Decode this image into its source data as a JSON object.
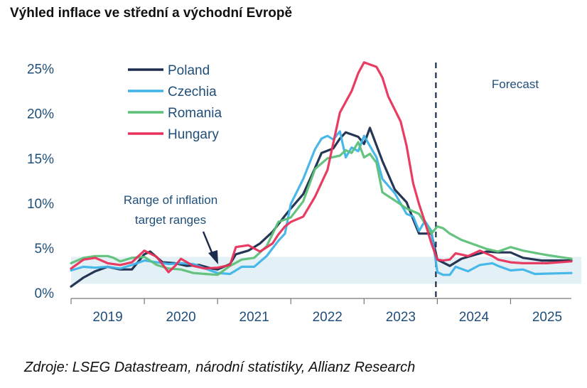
{
  "title": "Výhled inflace ve střední a východní Evropě",
  "source": "Zdroje: LSEG Datastream, národní statistiky, Allianz Research",
  "chart_data": {
    "type": "line",
    "y_ticks": [
      "0%",
      "5%",
      "10%",
      "15%",
      "20%",
      "25%"
    ],
    "ylim": [
      0,
      26
    ],
    "x_labels": [
      "2019",
      "2020",
      "2021",
      "2022",
      "2023",
      "2024",
      "2025"
    ],
    "xlim": [
      2019.0,
      2025.83
    ],
    "forecast_start": 2024.0,
    "forecast_label": "Forecast",
    "band": {
      "label": "Range of inflation target ranges",
      "range": [
        1.0,
        4.0
      ],
      "color": "#e3f1f6"
    },
    "series": [
      {
        "name": "Poland",
        "color": "#1a2b4c",
        "points": [
          [
            2019.0,
            0.7
          ],
          [
            2019.17,
            1.7
          ],
          [
            2019.33,
            2.4
          ],
          [
            2019.5,
            2.9
          ],
          [
            2019.67,
            2.6
          ],
          [
            2019.83,
            2.6
          ],
          [
            2020.0,
            4.3
          ],
          [
            2020.08,
            4.6
          ],
          [
            2020.25,
            3.4
          ],
          [
            2020.42,
            3.3
          ],
          [
            2020.58,
            3.0
          ],
          [
            2020.75,
            3.1
          ],
          [
            2020.92,
            2.7
          ],
          [
            2021.0,
            2.6
          ],
          [
            2021.17,
            3.2
          ],
          [
            2021.25,
            4.3
          ],
          [
            2021.42,
            4.7
          ],
          [
            2021.58,
            5.5
          ],
          [
            2021.75,
            6.8
          ],
          [
            2021.92,
            8.6
          ],
          [
            2022.0,
            9.4
          ],
          [
            2022.17,
            11.0
          ],
          [
            2022.33,
            13.9
          ],
          [
            2022.42,
            15.6
          ],
          [
            2022.58,
            16.1
          ],
          [
            2022.67,
            17.2
          ],
          [
            2022.75,
            17.9
          ],
          [
            2022.92,
            17.4
          ],
          [
            2023.0,
            16.6
          ],
          [
            2023.08,
            18.4
          ],
          [
            2023.25,
            14.7
          ],
          [
            2023.42,
            11.5
          ],
          [
            2023.58,
            10.1
          ],
          [
            2023.67,
            8.2
          ],
          [
            2023.75,
            6.6
          ],
          [
            2023.92,
            6.6
          ],
          [
            2024.0,
            3.7
          ],
          [
            2024.17,
            3.0
          ],
          [
            2024.33,
            3.8
          ],
          [
            2024.5,
            4.2
          ],
          [
            2024.67,
            4.6
          ],
          [
            2024.83,
            4.5
          ],
          [
            2025.0,
            4.5
          ],
          [
            2025.17,
            3.9
          ],
          [
            2025.42,
            3.6
          ],
          [
            2025.83,
            3.6
          ]
        ]
      },
      {
        "name": "Czechia",
        "color": "#3fb3e8",
        "points": [
          [
            2019.0,
            2.5
          ],
          [
            2019.17,
            2.9
          ],
          [
            2019.33,
            2.8
          ],
          [
            2019.5,
            2.9
          ],
          [
            2019.67,
            2.7
          ],
          [
            2019.83,
            3.1
          ],
          [
            2020.0,
            3.6
          ],
          [
            2020.17,
            3.4
          ],
          [
            2020.33,
            3.2
          ],
          [
            2020.5,
            3.3
          ],
          [
            2020.67,
            3.2
          ],
          [
            2020.83,
            2.7
          ],
          [
            2021.0,
            2.2
          ],
          [
            2021.17,
            2.1
          ],
          [
            2021.33,
            2.9
          ],
          [
            2021.5,
            2.9
          ],
          [
            2021.67,
            4.1
          ],
          [
            2021.83,
            5.8
          ],
          [
            2021.92,
            6.6
          ],
          [
            2022.0,
            9.9
          ],
          [
            2022.17,
            12.7
          ],
          [
            2022.33,
            16.0
          ],
          [
            2022.42,
            17.2
          ],
          [
            2022.5,
            17.5
          ],
          [
            2022.58,
            17.1
          ],
          [
            2022.67,
            18.0
          ],
          [
            2022.75,
            15.1
          ],
          [
            2022.83,
            16.2
          ],
          [
            2022.92,
            15.8
          ],
          [
            2023.0,
            17.5
          ],
          [
            2023.17,
            15.1
          ],
          [
            2023.25,
            12.7
          ],
          [
            2023.42,
            11.1
          ],
          [
            2023.58,
            8.8
          ],
          [
            2023.67,
            8.5
          ],
          [
            2023.75,
            6.9
          ],
          [
            2023.83,
            8.0
          ],
          [
            2023.92,
            6.9
          ],
          [
            2024.0,
            2.3
          ],
          [
            2024.08,
            2.0
          ],
          [
            2024.17,
            2.0
          ],
          [
            2024.25,
            2.9
          ],
          [
            2024.42,
            2.4
          ],
          [
            2024.58,
            3.1
          ],
          [
            2024.75,
            3.3
          ],
          [
            2024.83,
            3.0
          ],
          [
            2025.0,
            2.5
          ],
          [
            2025.17,
            2.6
          ],
          [
            2025.33,
            2.1
          ],
          [
            2025.83,
            2.2
          ]
        ]
      },
      {
        "name": "Romania",
        "color": "#5cc078",
        "points": [
          [
            2019.0,
            3.3
          ],
          [
            2019.17,
            3.9
          ],
          [
            2019.33,
            4.1
          ],
          [
            2019.5,
            4.1
          ],
          [
            2019.58,
            3.9
          ],
          [
            2019.67,
            3.5
          ],
          [
            2019.83,
            3.9
          ],
          [
            2020.0,
            4.0
          ],
          [
            2020.17,
            3.1
          ],
          [
            2020.33,
            2.7
          ],
          [
            2020.5,
            2.6
          ],
          [
            2020.67,
            2.2
          ],
          [
            2020.83,
            2.1
          ],
          [
            2021.0,
            2.0
          ],
          [
            2021.17,
            3.0
          ],
          [
            2021.33,
            3.7
          ],
          [
            2021.5,
            3.9
          ],
          [
            2021.67,
            5.2
          ],
          [
            2021.83,
            7.9
          ],
          [
            2022.0,
            8.4
          ],
          [
            2022.17,
            10.2
          ],
          [
            2022.33,
            13.8
          ],
          [
            2022.5,
            15.0
          ],
          [
            2022.67,
            15.3
          ],
          [
            2022.75,
            15.9
          ],
          [
            2022.83,
            15.6
          ],
          [
            2022.92,
            16.8
          ],
          [
            2023.0,
            15.1
          ],
          [
            2023.08,
            15.5
          ],
          [
            2023.17,
            14.5
          ],
          [
            2023.25,
            11.2
          ],
          [
            2023.42,
            10.3
          ],
          [
            2023.58,
            9.4
          ],
          [
            2023.75,
            8.8
          ],
          [
            2023.92,
            6.6
          ],
          [
            2024.0,
            7.4
          ],
          [
            2024.08,
            7.2
          ],
          [
            2024.17,
            6.6
          ],
          [
            2024.33,
            5.9
          ],
          [
            2024.5,
            5.4
          ],
          [
            2024.67,
            4.9
          ],
          [
            2024.83,
            4.6
          ],
          [
            2025.0,
            5.1
          ],
          [
            2025.17,
            4.7
          ],
          [
            2025.5,
            4.2
          ],
          [
            2025.83,
            3.8
          ]
        ]
      },
      {
        "name": "Hungary",
        "color": "#e8315b",
        "points": [
          [
            2019.0,
            2.7
          ],
          [
            2019.17,
            3.7
          ],
          [
            2019.33,
            3.9
          ],
          [
            2019.5,
            3.3
          ],
          [
            2019.67,
            3.1
          ],
          [
            2019.83,
            3.4
          ],
          [
            2020.0,
            4.7
          ],
          [
            2020.17,
            4.0
          ],
          [
            2020.33,
            2.3
          ],
          [
            2020.42,
            3.0
          ],
          [
            2020.5,
            3.8
          ],
          [
            2020.67,
            3.0
          ],
          [
            2020.83,
            2.7
          ],
          [
            2021.0,
            2.8
          ],
          [
            2021.17,
            3.1
          ],
          [
            2021.25,
            5.1
          ],
          [
            2021.42,
            5.3
          ],
          [
            2021.58,
            4.6
          ],
          [
            2021.75,
            5.5
          ],
          [
            2021.83,
            6.5
          ],
          [
            2021.92,
            7.4
          ],
          [
            2022.0,
            7.9
          ],
          [
            2022.17,
            8.5
          ],
          [
            2022.33,
            10.7
          ],
          [
            2022.5,
            13.7
          ],
          [
            2022.67,
            20.1
          ],
          [
            2022.83,
            22.5
          ],
          [
            2022.92,
            24.5
          ],
          [
            2023.0,
            25.7
          ],
          [
            2023.17,
            25.2
          ],
          [
            2023.25,
            24.0
          ],
          [
            2023.33,
            21.9
          ],
          [
            2023.5,
            19.1
          ],
          [
            2023.58,
            16.4
          ],
          [
            2023.67,
            12.2
          ],
          [
            2023.75,
            9.9
          ],
          [
            2023.83,
            7.9
          ],
          [
            2023.92,
            5.5
          ],
          [
            2024.0,
            3.7
          ],
          [
            2024.08,
            3.6
          ],
          [
            2024.17,
            3.7
          ],
          [
            2024.25,
            4.4
          ],
          [
            2024.42,
            4.1
          ],
          [
            2024.58,
            4.7
          ],
          [
            2024.75,
            4.1
          ],
          [
            2024.83,
            3.7
          ],
          [
            2025.0,
            3.4
          ],
          [
            2025.17,
            3.3
          ],
          [
            2025.5,
            3.3
          ],
          [
            2025.83,
            3.5
          ]
        ]
      }
    ]
  }
}
